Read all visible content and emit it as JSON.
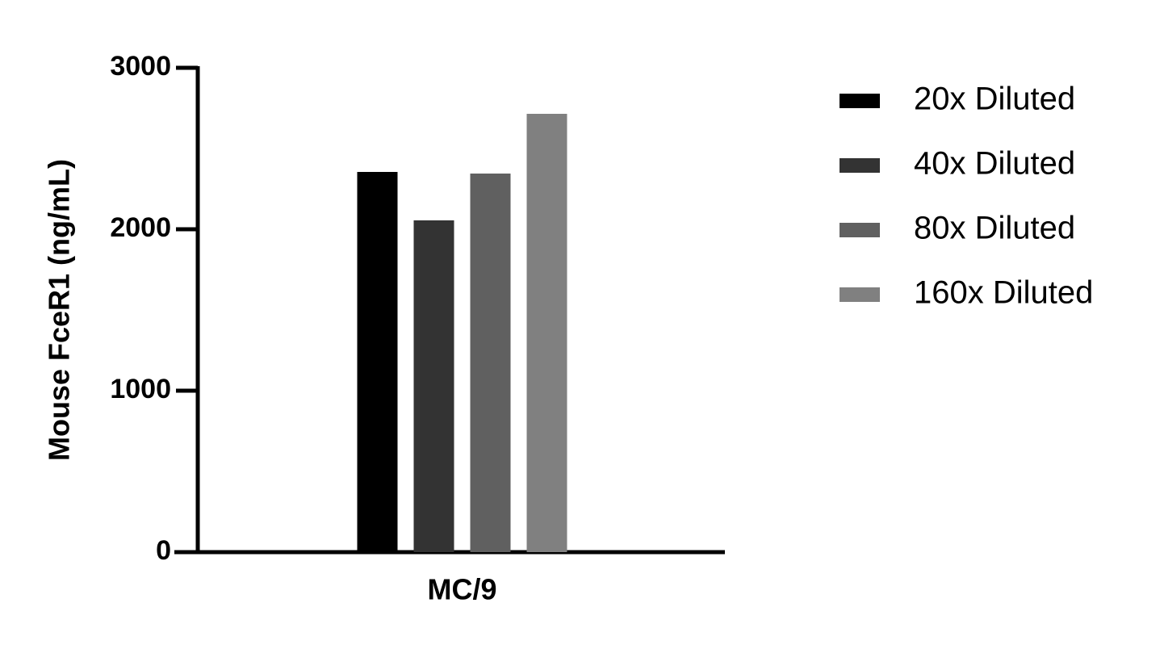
{
  "chart_data": {
    "type": "bar",
    "y_label": "Mouse FceR1 (ng/mL)",
    "categories": [
      "MC/9"
    ],
    "series": [
      {
        "name": "20x Diluted",
        "color": "#000000",
        "values": [
          2355
        ]
      },
      {
        "name": "40x Diluted",
        "color": "#333333",
        "values": [
          2055
        ]
      },
      {
        "name": "80x Diluted",
        "color": "#606060",
        "values": [
          2345
        ]
      },
      {
        "name": "160x Diluted",
        "color": "#808080",
        "values": [
          2715
        ]
      }
    ],
    "ylim": [
      0,
      3000
    ],
    "yticks": [
      0,
      1000,
      2000,
      3000
    ],
    "grid": false
  }
}
